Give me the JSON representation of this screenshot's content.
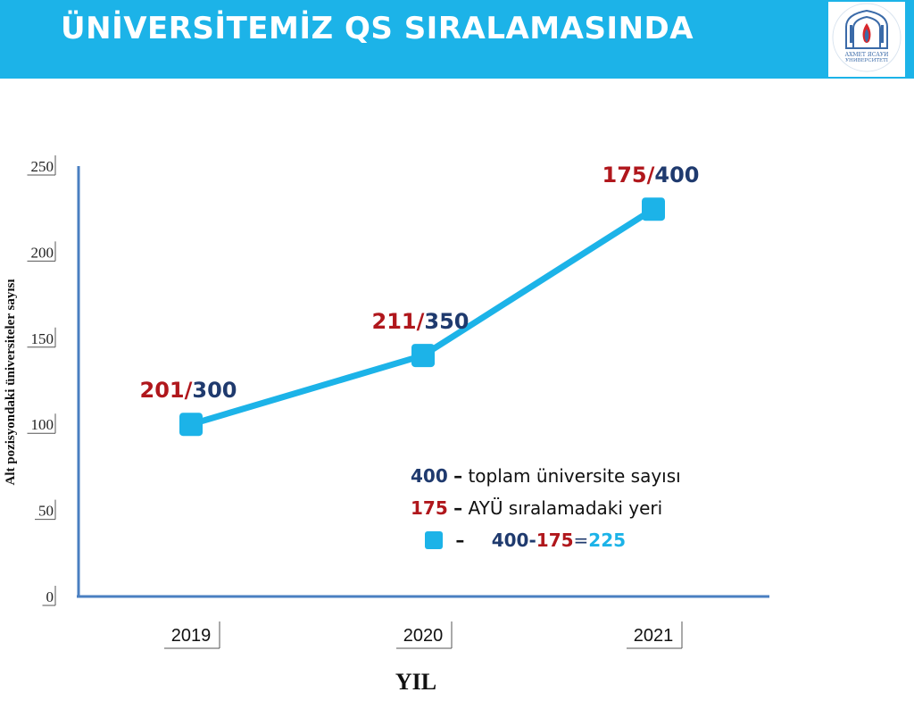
{
  "header": {
    "title": "ÜNİVERSİTEMİZ QS SIRALAMASINDA",
    "logo_text": [
      "АХМЕТ ЯСАУИ",
      "УНИВЕРСИТЕТІ"
    ]
  },
  "colors": {
    "accent": "#1cb3e8",
    "axis": "#4a7fc1",
    "navy": "#1f3a6e",
    "red": "#b0171c"
  },
  "chart_data": {
    "type": "line",
    "title": "",
    "xlabel": "YIL",
    "ylabel": "Alt pozisyondaki üniversiteler sayısı",
    "categories": [
      "2019",
      "2020",
      "2021"
    ],
    "values": [
      100,
      140,
      225
    ],
    "ylim": [
      0,
      250
    ],
    "yticks": [
      0,
      50,
      100,
      150,
      200,
      250
    ],
    "grid": false,
    "data_labels": [
      {
        "rank": "201",
        "total": "300"
      },
      {
        "rank": "211",
        "total": "350"
      },
      {
        "rank": "175",
        "total": "400"
      }
    ]
  },
  "legend": {
    "row1": {
      "value": "400",
      "dash": "–",
      "text": "toplam üniversite sayısı"
    },
    "row2": {
      "value": "175",
      "dash": "–",
      "text": "AYÜ sıralamadaki yeri"
    },
    "row3": {
      "dash": "–",
      "a": "400",
      "minus": "-",
      "b": "175",
      "eq": "=",
      "result": "225"
    }
  }
}
